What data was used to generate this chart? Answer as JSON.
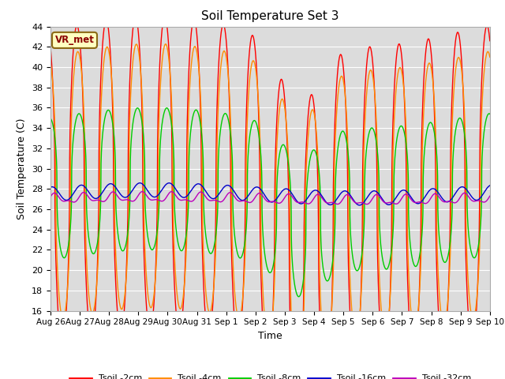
{
  "title": "Soil Temperature Set 3",
  "xlabel": "Time",
  "ylabel": "Soil Temperature (C)",
  "ylim": [
    16,
    44
  ],
  "yticks": [
    16,
    18,
    20,
    22,
    24,
    26,
    28,
    30,
    32,
    34,
    36,
    38,
    40,
    42,
    44
  ],
  "xtick_labels": [
    "Aug 26",
    "Aug 27",
    "Aug 28",
    "Aug 29",
    "Aug 30",
    "Aug 31",
    "Sep 1",
    "Sep 2",
    "Sep 3",
    "Sep 4",
    "Sep 5",
    "Sep 6",
    "Sep 7",
    "Sep 8",
    "Sep 9",
    "Sep 10"
  ],
  "annotation_text": "VR_met",
  "annotation_color": "#8B0000",
  "annotation_bg": "#FFFFC0",
  "line_colors": {
    "2cm": "#FF0000",
    "4cm": "#FF8C00",
    "8cm": "#00CC00",
    "16cm": "#0000CC",
    "32cm": "#BB00BB"
  },
  "legend_labels": [
    "Tsoil -2cm",
    "Tsoil -4cm",
    "Tsoil -8cm",
    "Tsoil -16cm",
    "Tsoil -32cm"
  ],
  "plot_bg": "#DCDCDC"
}
